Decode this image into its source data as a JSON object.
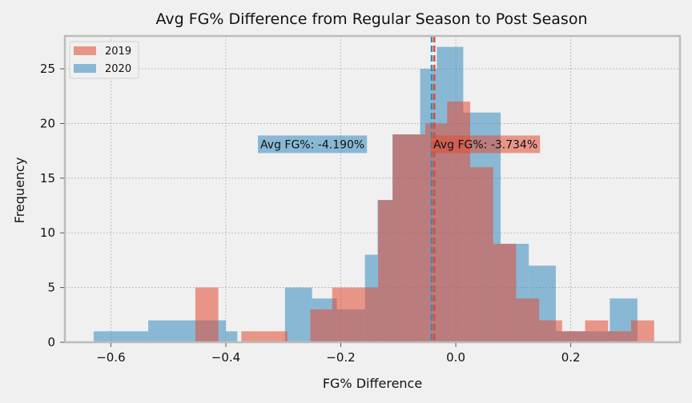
{
  "chart_data": {
    "type": "histogram",
    "title": "Avg FG% Difference from Regular Season to Post Season",
    "xlabel": "FG% Difference",
    "ylabel": "Frequency",
    "xlim": [
      -0.68,
      0.39
    ],
    "ylim": [
      0,
      28
    ],
    "xticks": [
      -0.6,
      -0.4,
      -0.2,
      0.0,
      0.2
    ],
    "xtick_labels": [
      "−0.6",
      "−0.4",
      "−0.2",
      "0.0",
      "0.2"
    ],
    "yticks": [
      0,
      5,
      10,
      15,
      20,
      25
    ],
    "grid": true,
    "legend": "top-left",
    "series": [
      {
        "name": "2020",
        "color": "#348abd",
        "bins": [
          {
            "x0": -0.63,
            "x1": -0.535,
            "count": 1
          },
          {
            "x0": -0.535,
            "x1": -0.44,
            "count": 2
          },
          {
            "x0": -0.44,
            "x1": -0.4,
            "count": 2
          },
          {
            "x0": -0.4,
            "x1": -0.38,
            "count": 1
          },
          {
            "x0": -0.38,
            "x1": -0.297,
            "count": 0
          },
          {
            "x0": -0.297,
            "x1": -0.25,
            "count": 5
          },
          {
            "x0": -0.25,
            "x1": -0.207,
            "count": 4
          },
          {
            "x0": -0.207,
            "x1": -0.158,
            "count": 3
          },
          {
            "x0": -0.158,
            "x1": -0.136,
            "count": 8
          },
          {
            "x0": -0.136,
            "x1": -0.11,
            "count": 13
          },
          {
            "x0": -0.11,
            "x1": -0.062,
            "count": 19
          },
          {
            "x0": -0.062,
            "x1": -0.033,
            "count": 25
          },
          {
            "x0": -0.033,
            "x1": 0.013,
            "count": 27
          },
          {
            "x0": 0.013,
            "x1": 0.078,
            "count": 21
          },
          {
            "x0": 0.078,
            "x1": 0.127,
            "count": 9
          },
          {
            "x0": 0.127,
            "x1": 0.174,
            "count": 7
          },
          {
            "x0": 0.174,
            "x1": 0.268,
            "count": 1
          },
          {
            "x0": 0.268,
            "x1": 0.316,
            "count": 4
          }
        ],
        "mean": -0.0419,
        "annotation": "Avg FG%: -4.190%",
        "annotation_x": -0.34,
        "annotation_y": 18.1
      },
      {
        "name": "2019",
        "color": "#e24a33",
        "bins": [
          {
            "x0": -0.453,
            "x1": -0.413,
            "count": 5
          },
          {
            "x0": -0.373,
            "x1": -0.348,
            "count": 1
          },
          {
            "x0": -0.348,
            "x1": -0.293,
            "count": 1
          },
          {
            "x0": -0.253,
            "x1": -0.215,
            "count": 3
          },
          {
            "x0": -0.215,
            "x1": -0.158,
            "count": 5
          },
          {
            "x0": -0.158,
            "x1": -0.135,
            "count": 5
          },
          {
            "x0": -0.135,
            "x1": -0.11,
            "count": 13
          },
          {
            "x0": -0.11,
            "x1": -0.053,
            "count": 19
          },
          {
            "x0": -0.053,
            "x1": -0.015,
            "count": 20
          },
          {
            "x0": -0.015,
            "x1": 0.025,
            "count": 22
          },
          {
            "x0": 0.025,
            "x1": 0.065,
            "count": 16
          },
          {
            "x0": 0.065,
            "x1": 0.105,
            "count": 9
          },
          {
            "x0": 0.105,
            "x1": 0.145,
            "count": 4
          },
          {
            "x0": 0.145,
            "x1": 0.185,
            "count": 2
          },
          {
            "x0": 0.185,
            "x1": 0.225,
            "count": 1
          },
          {
            "x0": 0.225,
            "x1": 0.265,
            "count": 2
          },
          {
            "x0": 0.265,
            "x1": 0.305,
            "count": 1
          },
          {
            "x0": 0.305,
            "x1": 0.345,
            "count": 2
          }
        ],
        "mean": -0.03734,
        "annotation": "Avg FG%: -3.734%",
        "annotation_x": -0.039,
        "annotation_y": 18.1
      }
    ],
    "legend_entries": [
      {
        "name": "2019",
        "color": "#e24a33"
      },
      {
        "name": "2020",
        "color": "#348abd"
      }
    ]
  }
}
